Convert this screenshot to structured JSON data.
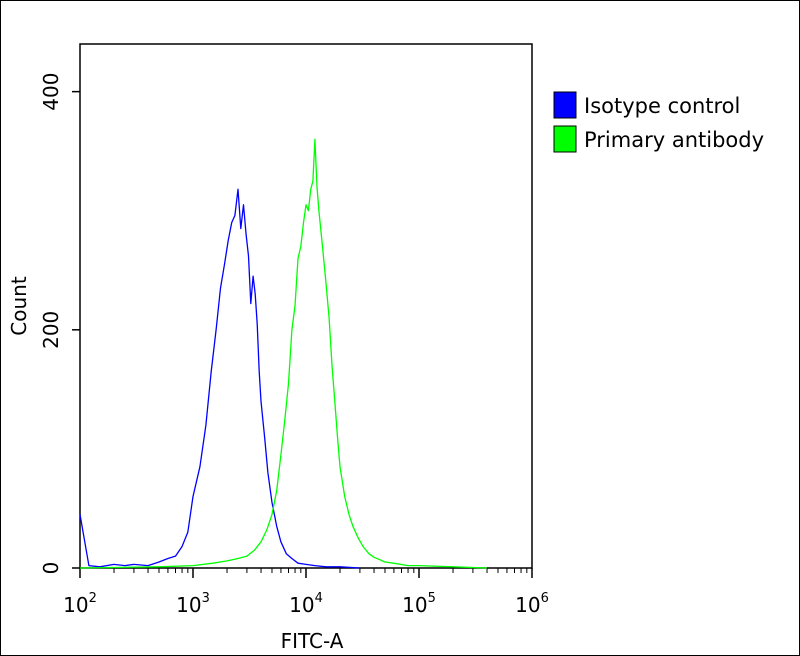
{
  "chart_data": {
    "type": "line",
    "xlabel": "FITC-A",
    "ylabel": "Count",
    "x_scale": "log",
    "xlim": [
      100,
      1000000
    ],
    "ylim": [
      0,
      440
    ],
    "x_ticks": [
      {
        "value": 100,
        "base": "10",
        "exp": "2"
      },
      {
        "value": 1000,
        "base": "10",
        "exp": "3"
      },
      {
        "value": 10000,
        "base": "10",
        "exp": "4"
      },
      {
        "value": 100000,
        "base": "10",
        "exp": "5"
      },
      {
        "value": 1000000,
        "base": "10",
        "exp": "6"
      }
    ],
    "y_ticks": [
      {
        "value": 0,
        "label": "0"
      },
      {
        "value": 200,
        "label": "200"
      },
      {
        "value": 400,
        "label": "400"
      }
    ],
    "grid": false,
    "legend_position": "right",
    "series": [
      {
        "name": "Isotype control",
        "color": "#0000ff",
        "x": [
          100,
          120,
          150,
          200,
          250,
          300,
          400,
          500,
          600,
          700,
          800,
          900,
          1000,
          1150,
          1300,
          1450,
          1600,
          1750,
          1900,
          2050,
          2200,
          2350,
          2500,
          2650,
          2800,
          2950,
          3100,
          3250,
          3400,
          3550,
          3700,
          3850,
          4000,
          4300,
          4600,
          5000,
          5500,
          6000,
          6700,
          7500,
          8500,
          10000,
          12000,
          15000,
          20000,
          30000
        ],
        "y": [
          45,
          2,
          1,
          3,
          2,
          3,
          2,
          5,
          8,
          10,
          18,
          30,
          60,
          85,
          120,
          165,
          200,
          235,
          255,
          275,
          290,
          296,
          318,
          285,
          305,
          280,
          262,
          222,
          245,
          230,
          205,
          165,
          140,
          110,
          80,
          55,
          35,
          22,
          12,
          8,
          4,
          3,
          2,
          1,
          1,
          0
        ]
      },
      {
        "name": "Primary antibody",
        "color": "#00ff00",
        "x": [
          100,
          500,
          1000,
          1500,
          2000,
          2500,
          3000,
          3500,
          4000,
          4500,
          5000,
          5500,
          6000,
          6500,
          7000,
          7500,
          8000,
          8500,
          9000,
          9500,
          10000,
          10500,
          11000,
          11500,
          12000,
          12500,
          13000,
          14000,
          15000,
          16000,
          17000,
          18000,
          19000,
          20000,
          22000,
          24000,
          26000,
          29000,
          32000,
          36000,
          40000,
          45000,
          50000,
          60000,
          80000,
          100000,
          200000,
          400000
        ],
        "y": [
          0,
          1,
          2,
          4,
          6,
          8,
          10,
          15,
          22,
          32,
          45,
          65,
          95,
          125,
          155,
          200,
          220,
          260,
          270,
          290,
          305,
          300,
          318,
          325,
          360,
          320,
          300,
          270,
          240,
          210,
          170,
          140,
          110,
          85,
          60,
          45,
          35,
          25,
          18,
          12,
          9,
          7,
          5,
          4,
          2,
          2,
          1,
          0
        ]
      }
    ]
  }
}
